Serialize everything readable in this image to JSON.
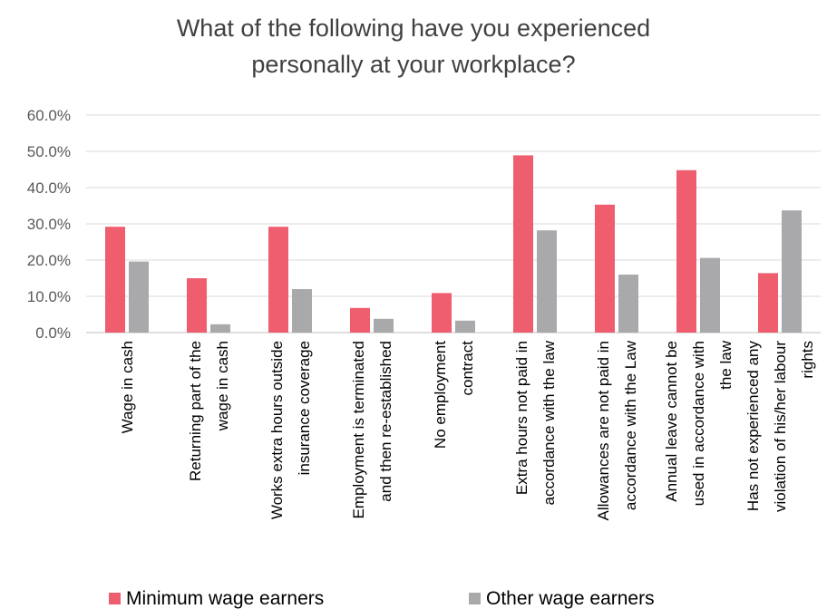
{
  "chart_data": {
    "type": "bar",
    "title_lines": [
      "What of the following have you experienced",
      "personally at your workplace?"
    ],
    "ylim": [
      0,
      60
    ],
    "y_ticks": [
      0,
      10,
      20,
      30,
      40,
      50,
      60
    ],
    "y_tick_labels": [
      "0.0%",
      "10.0%",
      "20.0%",
      "30.0%",
      "40.0%",
      "50.0%",
      "60.0%"
    ],
    "grid": true,
    "legend_position": "bottom",
    "categories": [
      [
        "Wage in cash"
      ],
      [
        "Returning part of the",
        "wage in cash"
      ],
      [
        "Works extra hours outside",
        "insurance coverage"
      ],
      [
        "Employment is terminated",
        "and then re-established"
      ],
      [
        "No employment",
        "contract"
      ],
      [
        "Extra hours not paid in",
        "accordance with the law"
      ],
      [
        "Allowances are not paid in",
        "accordance with the Law"
      ],
      [
        "Annual leave cannot be",
        "used in accordance with",
        "the law"
      ],
      [
        "Has not experienced any",
        "violation of his/her labour",
        "rights"
      ]
    ],
    "series": [
      {
        "name": "Minimum wage earners",
        "color": "#ee5e6e",
        "values": [
          29.2,
          15.0,
          29.2,
          6.8,
          10.9,
          48.9,
          35.3,
          44.8,
          16.4
        ]
      },
      {
        "name": "Other wage earners",
        "color": "#a9a9ab",
        "values": [
          19.6,
          2.3,
          12.0,
          3.8,
          3.3,
          28.2,
          16.0,
          20.6,
          33.7
        ]
      }
    ]
  }
}
